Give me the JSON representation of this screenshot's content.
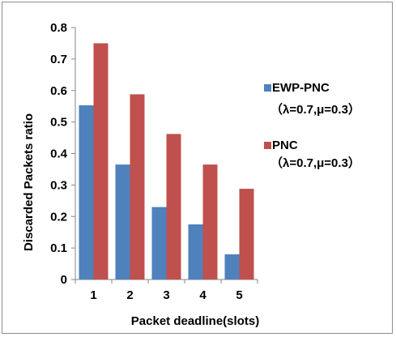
{
  "chart_data": {
    "type": "bar",
    "title": "",
    "xlabel": "Packet deadline(slots)",
    "ylabel": "Discarded Packets ratio",
    "categories": [
      "1",
      "2",
      "3",
      "4",
      "5"
    ],
    "yticks": [
      "0",
      "0.1",
      "0.2",
      "0.3",
      "0.4",
      "0.5",
      "0.6",
      "0.7",
      "0.8"
    ],
    "ylim": [
      0,
      0.8
    ],
    "grid": false,
    "legend_position": "right",
    "series": [
      {
        "name": "EWP-PNC",
        "detail": "（λ=0.7,μ=0.3）",
        "color": "#4f81bd",
        "values": [
          0.553,
          0.365,
          0.23,
          0.175,
          0.08
        ]
      },
      {
        "name": "PNC",
        "detail": "（λ=0.7,μ=0.3）",
        "color": "#c0504d",
        "values": [
          0.75,
          0.588,
          0.462,
          0.365,
          0.288
        ]
      }
    ]
  }
}
